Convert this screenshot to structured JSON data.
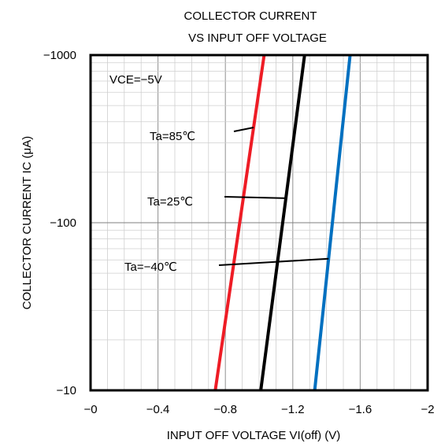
{
  "chart_data": {
    "type": "line",
    "title_lines": [
      "COLLECTOR CURRENT",
      "VS INPUT OFF VOLTAGE"
    ],
    "xlabel": "INPUT OFF VOLTAGE VI(off) (V)",
    "ylabel": "COLLECTOR CURRENT IC (μA)",
    "xlim": [
      0,
      -2
    ],
    "ylim": [
      -10,
      -1000
    ],
    "yscale": "log",
    "xticks": [
      0,
      -0.4,
      -0.8,
      -1.2,
      -1.6,
      -2
    ],
    "xtick_labels": [
      "−0",
      "−0.4",
      "−0.8",
      "−1.2",
      "−1.6",
      "−2"
    ],
    "yticks": [
      -1000,
      -100,
      -10
    ],
    "ytick_labels": [
      "−1000",
      "−100",
      "−10"
    ],
    "grid": true,
    "condition_label": "VCE=−5V",
    "series": [
      {
        "name": "Ta=85℃",
        "color": "#ee1c25",
        "points": [
          [
            -0.74,
            -10
          ],
          [
            -1.03,
            -1000
          ]
        ]
      },
      {
        "name": "Ta=25℃",
        "color": "#000000",
        "points": [
          [
            -1.01,
            -10
          ],
          [
            -1.27,
            -1000
          ]
        ]
      },
      {
        "name": "Ta=−40℃",
        "color": "#0070c0",
        "points": [
          [
            -1.33,
            -10
          ],
          [
            -1.54,
            -1000
          ]
        ]
      }
    ],
    "annotations": [
      {
        "text": "Ta=85℃",
        "series": 0,
        "at_y": -370
      },
      {
        "text": "Ta=25℃",
        "series": 1,
        "at_y": -140
      },
      {
        "text": "Ta=−40℃",
        "series": 2,
        "at_y": -61
      }
    ]
  }
}
